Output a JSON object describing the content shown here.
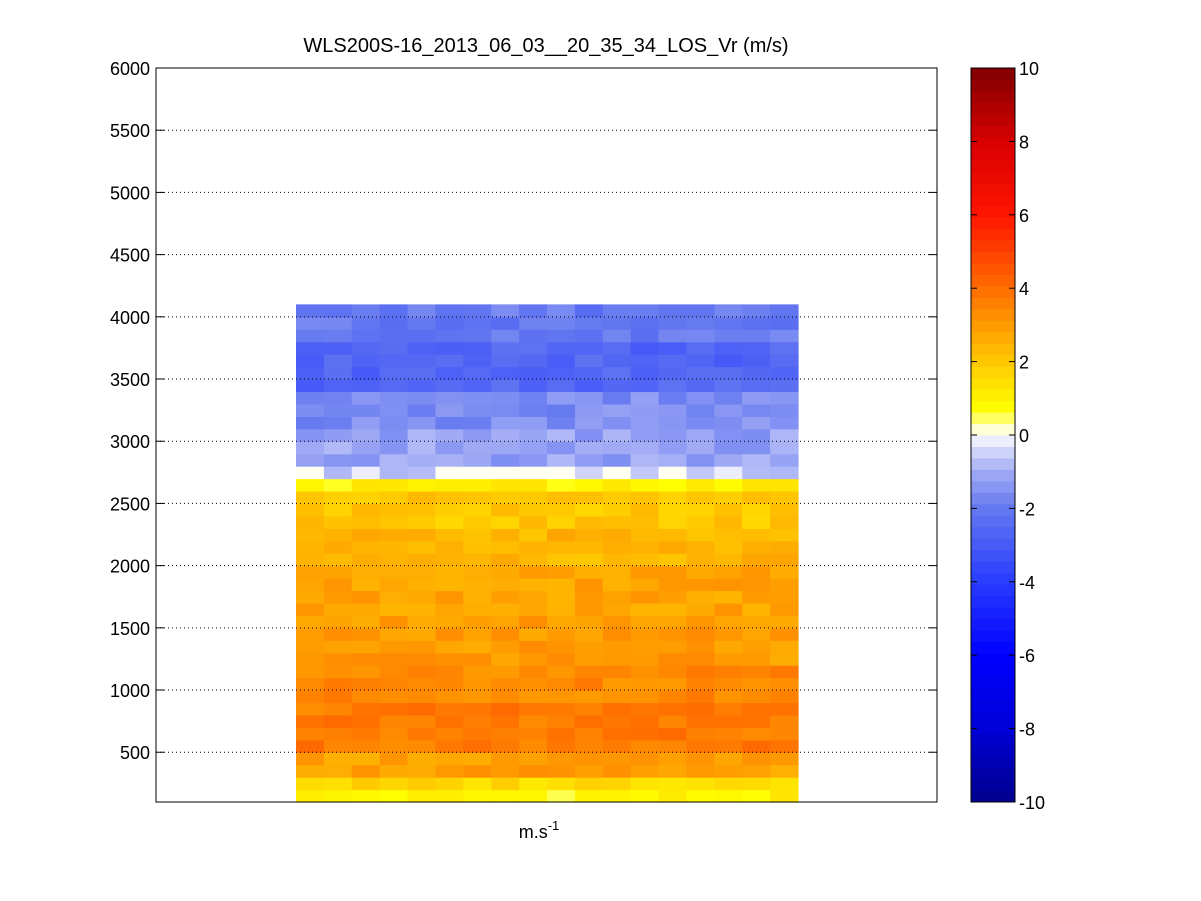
{
  "chart_data": {
    "type": "heatmap",
    "title": "WLS200S-16_2013_06_03__20_35_34_LOS_Vr (m/s)",
    "xlabel": "m.s",
    "xlabel_superscript": "-1",
    "ylabel": "",
    "ylim": [
      100,
      6000
    ],
    "yticks": [
      500,
      1000,
      1500,
      2000,
      2500,
      3000,
      3500,
      4000,
      4500,
      5000,
      5500,
      6000
    ],
    "grid": "horizontal dotted",
    "colorbar": {
      "limits": [
        -10,
        10
      ],
      "ticks": [
        -10,
        -8,
        -6,
        -4,
        -2,
        0,
        2,
        4,
        6,
        8,
        10
      ],
      "colormap": "blue-white-red (jet-like diverging)",
      "colors": {
        "min": "#00008b",
        "zero": "#ffffff",
        "max": "#800000"
      }
    },
    "columns": 18,
    "height_layers": [
      {
        "range": [
          100,
          200
        ],
        "vr": 0.9
      },
      {
        "range": [
          200,
          300
        ],
        "vr": 1.6
      },
      {
        "range": [
          300,
          500
        ],
        "vr": 2.9
      },
      {
        "range": [
          500,
          900
        ],
        "vr": 3.7
      },
      {
        "range": [
          900,
          1200
        ],
        "vr": 3.4
      },
      {
        "range": [
          1200,
          1600
        ],
        "vr": 3.0
      },
      {
        "range": [
          1600,
          2000
        ],
        "vr": 2.8
      },
      {
        "range": [
          2000,
          2300
        ],
        "vr": 2.4
      },
      {
        "range": [
          2300,
          2600
        ],
        "vr": 2.0
      },
      {
        "range": [
          2600,
          2700
        ],
        "vr": 1.0
      },
      {
        "range": [
          2700,
          2800
        ],
        "vr": -0.5
      },
      {
        "range": [
          2800,
          3100
        ],
        "vr": -1.2
      },
      {
        "range": [
          3100,
          3400
        ],
        "vr": -1.6
      },
      {
        "range": [
          3400,
          3800
        ],
        "vr": -2.6
      },
      {
        "range": [
          3800,
          4100
        ],
        "vr": -2.0
      }
    ]
  }
}
